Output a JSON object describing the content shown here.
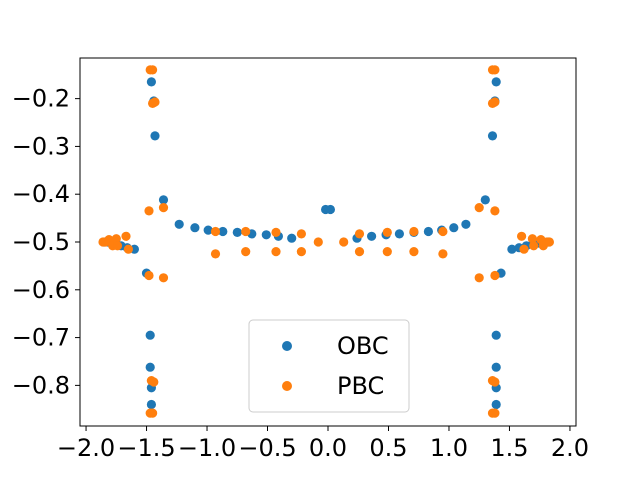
{
  "chart_data": {
    "type": "scatter",
    "title": "",
    "xlabel": "",
    "ylabel": "",
    "xlim": [
      -2.05,
      2.05
    ],
    "ylim": [
      -0.885,
      -0.115
    ],
    "xticks": [
      -2.0,
      -1.5,
      -1.0,
      -0.5,
      0.0,
      0.5,
      1.0,
      1.5,
      2.0
    ],
    "xtick_labels": [
      "−2.0",
      "−1.5",
      "−1.0",
      "−0.5",
      "0.0",
      "0.5",
      "1.0",
      "1.5",
      "2.0"
    ],
    "yticks": [
      -0.8,
      -0.7,
      -0.6,
      -0.5,
      -0.4,
      -0.3,
      -0.2
    ],
    "ytick_labels": [
      "−0.8",
      "−0.7",
      "−0.6",
      "−0.5",
      "−0.4",
      "−0.3",
      "−0.2"
    ],
    "grid": false,
    "legend_position": "lower-center",
    "series": [
      {
        "name": "OBC",
        "color": "#1f77b4",
        "points": [
          [
            -1.85,
            -0.5
          ],
          [
            -1.82,
            -0.5
          ],
          [
            -1.79,
            -0.502
          ],
          [
            -1.75,
            -0.505
          ],
          [
            -1.71,
            -0.508
          ],
          [
            -1.66,
            -0.512
          ],
          [
            -1.6,
            -0.515
          ],
          [
            -1.5,
            -0.565
          ],
          [
            -1.47,
            -0.695
          ],
          [
            -1.47,
            -0.762
          ],
          [
            -1.46,
            -0.805
          ],
          [
            -1.46,
            -0.84
          ],
          [
            -1.46,
            -0.165
          ],
          [
            -1.44,
            -0.205
          ],
          [
            -1.43,
            -0.278
          ],
          [
            -1.36,
            -0.412
          ],
          [
            -1.23,
            -0.463
          ],
          [
            -1.1,
            -0.47
          ],
          [
            -0.99,
            -0.475
          ],
          [
            -0.87,
            -0.478
          ],
          [
            -0.75,
            -0.48
          ],
          [
            -0.63,
            -0.483
          ],
          [
            -0.51,
            -0.485
          ],
          [
            -0.41,
            -0.488
          ],
          [
            -0.3,
            -0.492
          ],
          [
            -0.02,
            -0.432
          ],
          [
            0.02,
            -0.432
          ],
          [
            0.24,
            -0.492
          ],
          [
            0.36,
            -0.488
          ],
          [
            0.48,
            -0.485
          ],
          [
            0.59,
            -0.483
          ],
          [
            0.71,
            -0.48
          ],
          [
            0.83,
            -0.478
          ],
          [
            0.94,
            -0.475
          ],
          [
            1.04,
            -0.47
          ],
          [
            1.14,
            -0.463
          ],
          [
            1.3,
            -0.412
          ],
          [
            1.36,
            -0.278
          ],
          [
            1.38,
            -0.205
          ],
          [
            1.39,
            -0.165
          ],
          [
            1.39,
            -0.695
          ],
          [
            1.39,
            -0.762
          ],
          [
            1.39,
            -0.805
          ],
          [
            1.39,
            -0.84
          ],
          [
            1.43,
            -0.565
          ],
          [
            1.52,
            -0.515
          ],
          [
            1.58,
            -0.512
          ],
          [
            1.64,
            -0.508
          ],
          [
            1.69,
            -0.505
          ],
          [
            1.74,
            -0.502
          ],
          [
            1.78,
            -0.5
          ],
          [
            1.82,
            -0.5
          ]
        ]
      },
      {
        "name": "PBC",
        "color": "#ff7f0e",
        "points": [
          [
            -1.86,
            -0.5
          ],
          [
            -1.84,
            -0.5
          ],
          [
            -1.81,
            -0.495
          ],
          [
            -1.78,
            -0.508
          ],
          [
            -1.75,
            -0.493
          ],
          [
            -1.74,
            -0.508
          ],
          [
            -1.67,
            -0.488
          ],
          [
            -1.65,
            -0.515
          ],
          [
            -1.48,
            -0.435
          ],
          [
            -1.48,
            -0.57
          ],
          [
            -1.46,
            -0.79
          ],
          [
            -1.44,
            -0.793
          ],
          [
            -1.47,
            -0.858
          ],
          [
            -1.45,
            -0.858
          ],
          [
            -1.47,
            -0.14
          ],
          [
            -1.45,
            -0.14
          ],
          [
            -1.45,
            -0.21
          ],
          [
            -1.43,
            -0.207
          ],
          [
            -1.36,
            -0.428
          ],
          [
            -1.36,
            -0.575
          ],
          [
            -0.93,
            -0.478
          ],
          [
            -0.93,
            -0.525
          ],
          [
            -0.68,
            -0.478
          ],
          [
            -0.68,
            -0.52
          ],
          [
            -0.43,
            -0.48
          ],
          [
            -0.43,
            -0.52
          ],
          [
            -0.22,
            -0.483
          ],
          [
            -0.22,
            -0.52
          ],
          [
            -0.08,
            -0.5
          ],
          [
            0.13,
            -0.5
          ],
          [
            0.26,
            -0.483
          ],
          [
            0.26,
            -0.52
          ],
          [
            0.49,
            -0.48
          ],
          [
            0.49,
            -0.52
          ],
          [
            0.71,
            -0.478
          ],
          [
            0.71,
            -0.52
          ],
          [
            0.95,
            -0.478
          ],
          [
            0.95,
            -0.525
          ],
          [
            1.25,
            -0.428
          ],
          [
            1.25,
            -0.575
          ],
          [
            1.36,
            -0.21
          ],
          [
            1.38,
            -0.207
          ],
          [
            1.36,
            -0.14
          ],
          [
            1.38,
            -0.14
          ],
          [
            1.38,
            -0.435
          ],
          [
            1.38,
            -0.57
          ],
          [
            1.36,
            -0.79
          ],
          [
            1.38,
            -0.793
          ],
          [
            1.36,
            -0.858
          ],
          [
            1.38,
            -0.858
          ],
          [
            1.6,
            -0.488
          ],
          [
            1.62,
            -0.515
          ],
          [
            1.69,
            -0.493
          ],
          [
            1.7,
            -0.508
          ],
          [
            1.76,
            -0.495
          ],
          [
            1.78,
            -0.508
          ],
          [
            1.81,
            -0.5
          ],
          [
            1.83,
            -0.5
          ]
        ]
      }
    ]
  }
}
